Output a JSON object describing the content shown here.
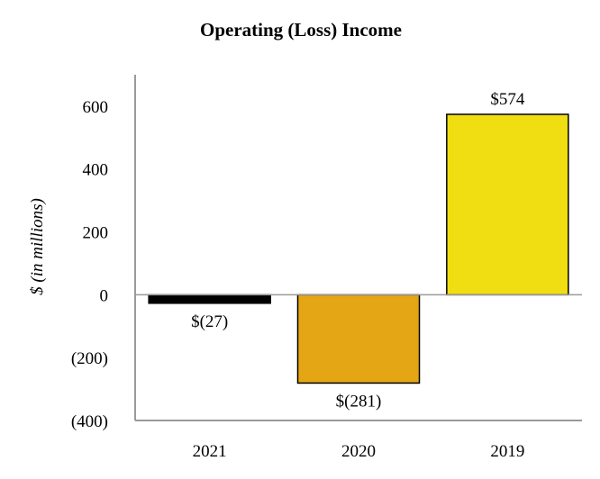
{
  "chart_data": {
    "type": "bar",
    "title": "Operating (Loss) Income",
    "xlabel": "",
    "ylabel": "$ (in millions)",
    "categories": [
      "2021",
      "2020",
      "2019"
    ],
    "values": [
      -27,
      -281,
      574
    ],
    "data_labels": [
      "$(27)",
      "$(281)",
      "$574"
    ],
    "colors": [
      "#000000",
      "#e4a614",
      "#f0de12"
    ],
    "ylim": [
      -400,
      700
    ],
    "yticks": [
      -400,
      -200,
      0,
      200,
      400,
      600
    ],
    "ytick_labels": [
      "(400)",
      "(200)",
      "0",
      "200",
      "400",
      "600"
    ],
    "grid": false,
    "legend": "none"
  }
}
